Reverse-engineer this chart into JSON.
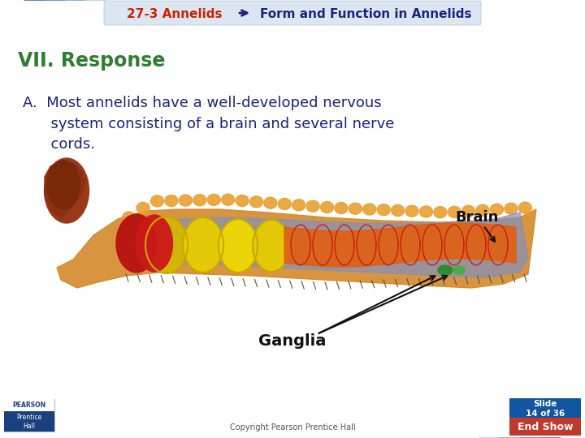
{
  "title_part1": "27-3 Annelids",
  "title_part2": "Form and Function in Annelids",
  "section": "VII. Response",
  "body_line1": "A.  Most annelids have a well-developed nervous",
  "body_line2": "      system consisting of a brain and several nerve",
  "body_line3": "      cords.",
  "label_brain": "Brain",
  "label_ganglia": "Ganglia",
  "copyright": "Copyright Pearson Prentice Hall",
  "slide_text": "Slide\n14 of 36",
  "end_show": "End Show",
  "bg_color": "#ffffff",
  "title1_color": "#cc2200",
  "title2_color": "#1a237e",
  "section_color": "#2e7d32",
  "body_color": "#1a237e",
  "blue_dark": "#1255a0",
  "blue_mid": "#1976d2",
  "blue_light": "#5b9bd5",
  "blue_lighter": "#9dc3e6",
  "end_show_bg": "#c0392b",
  "slide_num_bg": "#1255a0",
  "header_bg": "#dce6f1"
}
